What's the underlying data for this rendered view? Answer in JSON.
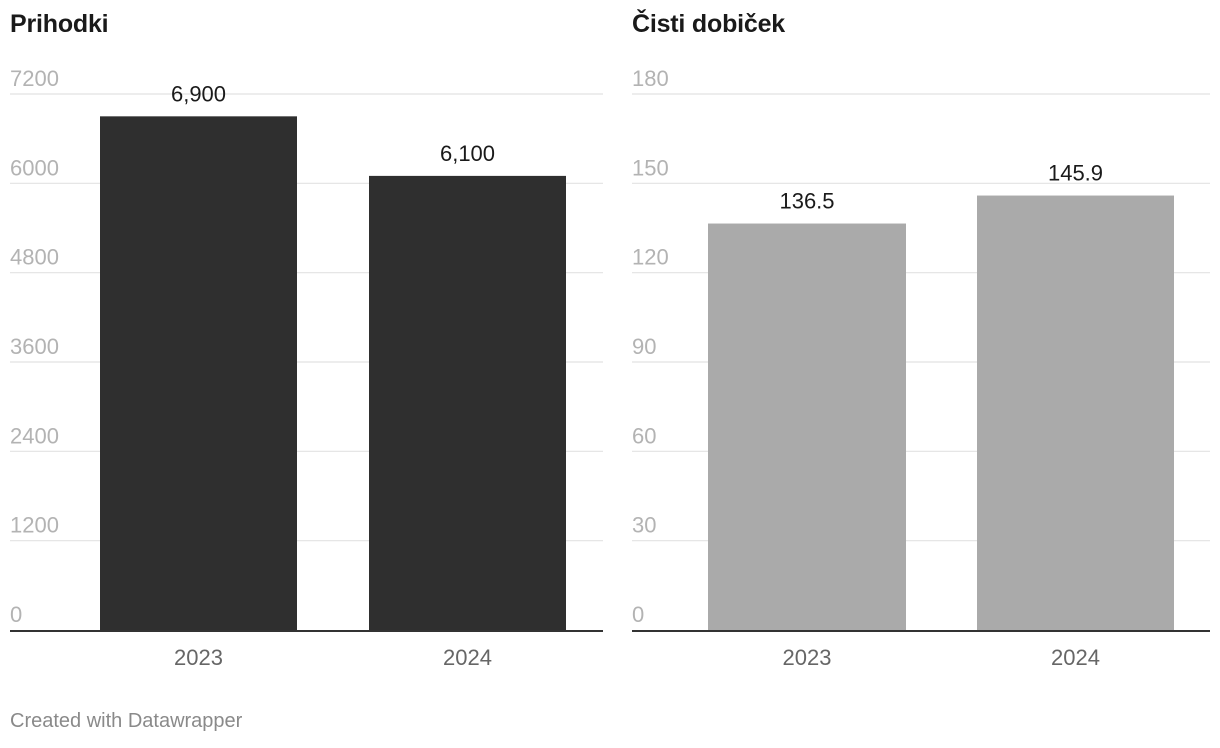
{
  "chart_data": [
    {
      "type": "bar",
      "title": "Prihodki",
      "categories": [
        "2023",
        "2024"
      ],
      "values": [
        6900,
        6100
      ],
      "value_labels": [
        "6,900",
        "6,100"
      ],
      "yticks": [
        0,
        1200,
        2400,
        3600,
        4800,
        6000,
        7200
      ],
      "ylim": [
        0,
        7200
      ],
      "grid": true,
      "bar_color": "#2f2f2f"
    },
    {
      "type": "bar",
      "title": "Čisti dobiček",
      "categories": [
        "2023",
        "2024"
      ],
      "values": [
        136.5,
        145.9
      ],
      "value_labels": [
        "136.5",
        "145.9"
      ],
      "yticks": [
        0,
        30,
        60,
        90,
        120,
        150,
        180
      ],
      "ylim": [
        0,
        180
      ],
      "grid": true,
      "bar_color": "#aaaaaa"
    }
  ],
  "colors": {
    "grid": "#e2e2e2",
    "axis": "#333333",
    "tick_label": "#b3b3b3",
    "category_label": "#666666",
    "value_label": "#1a1a1a"
  },
  "footer": {
    "credit": "Created with Datawrapper"
  }
}
